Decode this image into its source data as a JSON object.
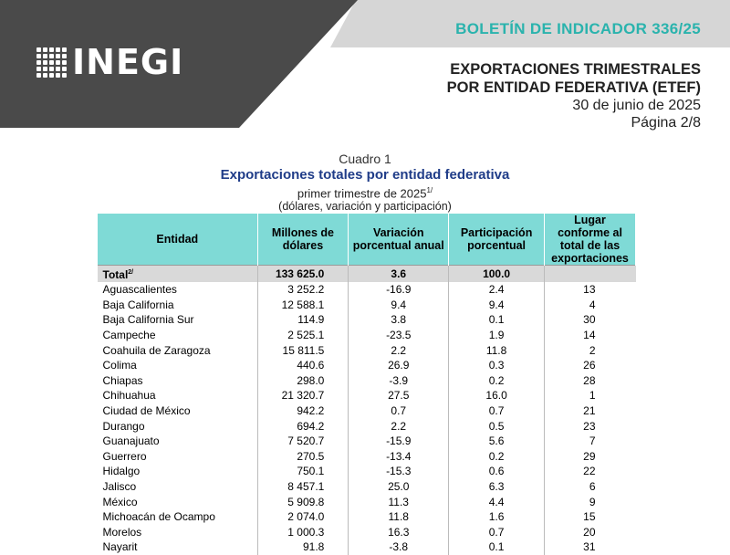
{
  "header": {
    "logo_text": "INEGI",
    "bulletin": "BOLETÍN DE INDICADOR 336/25",
    "title_line1": "EXPORTACIONES TRIMESTRALES",
    "title_line2": "POR ENTIDAD FEDERATIVA (ETEF)",
    "date": "30 de junio de 2025",
    "page": "Página 2/8"
  },
  "caption": {
    "number": "Cuadro 1",
    "title": "Exportaciones totales por entidad federativa",
    "subtitle": "primer trimestre de 2025",
    "subtitle_sup": "1/",
    "units": "(dólares, variación y participación)"
  },
  "table": {
    "columns": {
      "entidad": "Entidad",
      "millones": "Millones de dólares",
      "variacion": "Variación porcentual anual",
      "participacion": "Participación porcentual",
      "lugar": "Lugar conforme al total de las exportaciones"
    },
    "total": {
      "label": "Total",
      "sup": "2/",
      "millones": "133 625.0",
      "variacion": "3.6",
      "participacion": "100.0",
      "lugar": ""
    },
    "rows": [
      {
        "entidad": "Aguascalientes",
        "millones": "3 252.2",
        "variacion": "-16.9",
        "participacion": "2.4",
        "lugar": "13"
      },
      {
        "entidad": "Baja California",
        "millones": "12 588.1",
        "variacion": "9.4",
        "participacion": "9.4",
        "lugar": "4"
      },
      {
        "entidad": "Baja California Sur",
        "millones": "114.9",
        "variacion": "3.8",
        "participacion": "0.1",
        "lugar": "30"
      },
      {
        "entidad": "Campeche",
        "millones": "2 525.1",
        "variacion": "-23.5",
        "participacion": "1.9",
        "lugar": "14"
      },
      {
        "entidad": "Coahuila de Zaragoza",
        "millones": "15 811.5",
        "variacion": "2.2",
        "participacion": "11.8",
        "lugar": "2"
      },
      {
        "entidad": "Colima",
        "millones": "440.6",
        "variacion": "26.9",
        "participacion": "0.3",
        "lugar": "26"
      },
      {
        "entidad": "Chiapas",
        "millones": "298.0",
        "variacion": "-3.9",
        "participacion": "0.2",
        "lugar": "28"
      },
      {
        "entidad": "Chihuahua",
        "millones": "21 320.7",
        "variacion": "27.5",
        "participacion": "16.0",
        "lugar": "1"
      },
      {
        "entidad": "Ciudad de México",
        "millones": "942.2",
        "variacion": "0.7",
        "participacion": "0.7",
        "lugar": "21"
      },
      {
        "entidad": "Durango",
        "millones": "694.2",
        "variacion": "2.2",
        "participacion": "0.5",
        "lugar": "23"
      },
      {
        "entidad": "Guanajuato",
        "millones": "7 520.7",
        "variacion": "-15.9",
        "participacion": "5.6",
        "lugar": "7"
      },
      {
        "entidad": "Guerrero",
        "millones": "270.5",
        "variacion": "-13.4",
        "participacion": "0.2",
        "lugar": "29"
      },
      {
        "entidad": "Hidalgo",
        "millones": "750.1",
        "variacion": "-15.3",
        "participacion": "0.6",
        "lugar": "22"
      },
      {
        "entidad": "Jalisco",
        "millones": "8 457.1",
        "variacion": "25.0",
        "participacion": "6.3",
        "lugar": "6"
      },
      {
        "entidad": "México",
        "millones": "5 909.8",
        "variacion": "11.3",
        "participacion": "4.4",
        "lugar": "9"
      },
      {
        "entidad": "Michoacán de Ocampo",
        "millones": "2 074.0",
        "variacion": "11.8",
        "participacion": "1.6",
        "lugar": "15"
      },
      {
        "entidad": "Morelos",
        "millones": "1 000.3",
        "variacion": "16.3",
        "participacion": "0.7",
        "lugar": "20"
      },
      {
        "entidad": "Nayarit",
        "millones": "91.8",
        "variacion": "-3.8",
        "participacion": "0.1",
        "lugar": "31"
      }
    ]
  },
  "colors": {
    "banner_dark": "#4a4a4a",
    "banner_light": "#d6d6d6",
    "accent_teal": "#2ab3ad",
    "header_cell": "#7fdad6",
    "title_blue": "#1f3c88"
  }
}
